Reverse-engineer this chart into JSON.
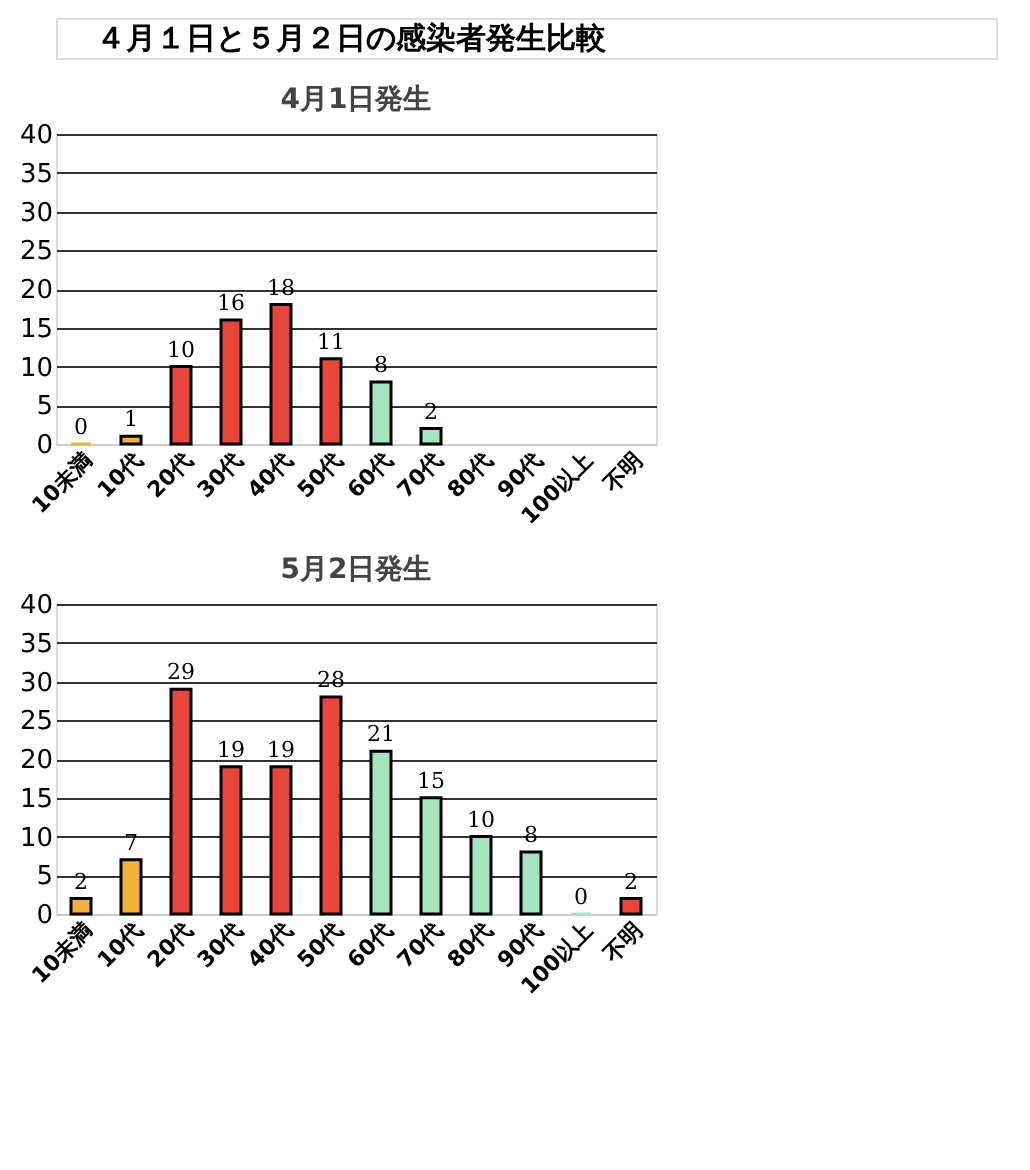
{
  "chart_data": [
    {
      "type": "other",
      "title": "４月１日と５月２日の感染者発生比較"
    },
    {
      "type": "bar",
      "title": "4月1日発生",
      "categories": [
        "10未満",
        "10代",
        "20代",
        "30代",
        "40代",
        "50代",
        "60代",
        "70代",
        "80代",
        "90代",
        "100以上",
        "不明"
      ],
      "values": [
        0,
        1,
        10,
        16,
        18,
        11,
        8,
        2,
        null,
        null,
        null,
        null
      ],
      "value_labels": [
        "0",
        "1",
        "10",
        "16",
        "18",
        "11",
        "8",
        "2",
        null,
        null,
        null,
        null
      ],
      "colors": [
        "#f2b23a",
        "#f2b23a",
        "#e8463c",
        "#e8463c",
        "#e8463c",
        "#e8463c",
        "#a6e3bf",
        "#a6e3bf",
        "#a6e3bf",
        "#a6e3bf",
        "#a6e3bf",
        "#e8463c"
      ],
      "ylim": [
        0,
        40
      ],
      "yticks": [
        0,
        5,
        10,
        15,
        20,
        25,
        30,
        35,
        40
      ],
      "grid": "y"
    },
    {
      "type": "bar",
      "title": "5月2日発生",
      "categories": [
        "10未満",
        "10代",
        "20代",
        "30代",
        "40代",
        "50代",
        "60代",
        "70代",
        "80代",
        "90代",
        "100以上",
        "不明"
      ],
      "values": [
        2,
        7,
        29,
        19,
        19,
        28,
        21,
        15,
        10,
        8,
        0,
        2
      ],
      "data_labels": true,
      "colors": [
        "#f2b23a",
        "#f2b23a",
        "#e8463c",
        "#e8463c",
        "#e8463c",
        "#e8463c",
        "#a6e3bf",
        "#a6e3bf",
        "#a6e3bf",
        "#a6e3bf",
        "#a6e3bf",
        "#e8463c"
      ],
      "ylim": [
        0,
        40
      ],
      "yticks": [
        0,
        5,
        10,
        15,
        20,
        25,
        30,
        35,
        40
      ],
      "grid": "y"
    }
  ]
}
